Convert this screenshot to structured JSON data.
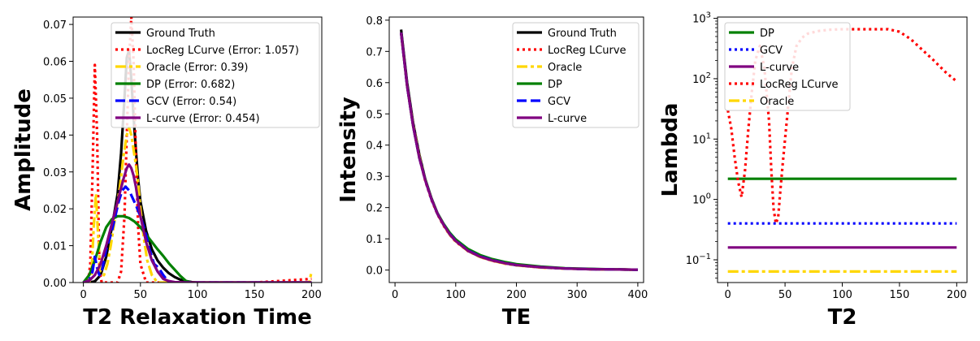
{
  "chart_data": [
    {
      "type": "line",
      "xlabel": "T2 Relaxation Time",
      "ylabel": "Amplitude",
      "xlim": [
        -9,
        209
      ],
      "ylim": [
        0,
        0.072
      ],
      "xscale": "linear",
      "yscale": "linear",
      "xticks": [
        0,
        50,
        100,
        150,
        200
      ],
      "yticks": [
        0.0,
        0.01,
        0.02,
        0.03,
        0.04,
        0.05,
        0.06,
        0.07
      ],
      "xtick_labels": [
        "0",
        "50",
        "100",
        "150",
        "200"
      ],
      "ytick_labels": [
        "0.00",
        "0.01",
        "0.02",
        "0.03",
        "0.04",
        "0.05",
        "0.06",
        "0.07"
      ],
      "legend_position": "top-right",
      "series": [
        {
          "name": "Ground Truth",
          "color": "#000000",
          "style": "solid",
          "x": [
            0,
            5,
            10,
            15,
            20,
            25,
            30,
            33,
            36,
            38,
            40,
            42,
            44,
            46,
            48,
            50,
            55,
            60,
            65,
            70,
            75,
            80,
            85,
            90,
            95,
            100,
            150,
            200
          ],
          "y": [
            0,
            0,
            0.0003,
            0.002,
            0.007,
            0.015,
            0.024,
            0.035,
            0.05,
            0.061,
            0.063,
            0.055,
            0.045,
            0.036,
            0.028,
            0.022,
            0.014,
            0.009,
            0.006,
            0.004,
            0.0025,
            0.0015,
            0.0008,
            0.0004,
            0.0001,
            0,
            0,
            0
          ]
        },
        {
          "name": "LocReg LCurve (Error: 1.057)",
          "color": "#ff0000",
          "style": "dotted",
          "x": [
            0,
            4,
            6,
            8,
            10,
            12,
            14,
            16,
            18,
            20,
            22,
            25,
            28,
            30,
            33,
            36,
            38,
            40,
            42,
            44,
            46,
            48,
            50,
            55,
            60,
            100,
            150,
            200
          ],
          "y": [
            0,
            0,
            0.005,
            0.03,
            0.059,
            0.04,
            0.004,
            0,
            0,
            0,
            0,
            0,
            0,
            0,
            0.003,
            0.018,
            0.04,
            0.06,
            0.072,
            0.06,
            0.035,
            0.015,
            0.005,
            0,
            0,
            0,
            0,
            0.001
          ]
        },
        {
          "name": "Oracle (Error: 0.39)",
          "color": "#ffd700",
          "style": "dashdot",
          "x": [
            0,
            5,
            7,
            9,
            11,
            13,
            15,
            18,
            21,
            24,
            28,
            32,
            35,
            38,
            40,
            42,
            44,
            46,
            48,
            50,
            53,
            56,
            60,
            65,
            70,
            100,
            150,
            198,
            200
          ],
          "y": [
            0,
            0,
            0.002,
            0.015,
            0.024,
            0.012,
            0.003,
            0.002,
            0.005,
            0.01,
            0.018,
            0.026,
            0.034,
            0.04,
            0.042,
            0.04,
            0.036,
            0.032,
            0.027,
            0.02,
            0.012,
            0.006,
            0.002,
            0,
            0,
            0,
            0,
            0,
            0.003
          ]
        },
        {
          "name": "DP (Error: 0.682)",
          "color": "#008000",
          "style": "solid",
          "x": [
            0,
            5,
            10,
            15,
            20,
            25,
            30,
            35,
            40,
            45,
            50,
            55,
            60,
            65,
            70,
            75,
            80,
            85,
            90,
            95,
            100,
            150,
            200
          ],
          "y": [
            0,
            0.002,
            0.006,
            0.011,
            0.015,
            0.0172,
            0.018,
            0.018,
            0.0175,
            0.0165,
            0.015,
            0.013,
            0.011,
            0.009,
            0.0072,
            0.0052,
            0.0035,
            0.0018,
            0.0004,
            0,
            0,
            0,
            0
          ]
        },
        {
          "name": "GCV (Error: 0.54)",
          "color": "#0000ff",
          "style": "dashed",
          "x": [
            0,
            5,
            8,
            10,
            12,
            14,
            16,
            18,
            20,
            22,
            25,
            28,
            31,
            34,
            37,
            40,
            43,
            46,
            50,
            54,
            58,
            62,
            66,
            70,
            75,
            100,
            150,
            200
          ],
          "y": [
            0,
            0.0005,
            0.003,
            0.007,
            0.004,
            0.002,
            0.003,
            0.006,
            0.009,
            0.011,
            0.014,
            0.018,
            0.022,
            0.025,
            0.026,
            0.025,
            0.023,
            0.021,
            0.018,
            0.014,
            0.009,
            0.005,
            0.004,
            0.002,
            0,
            0,
            0,
            0
          ]
        },
        {
          "name": "L-curve (Error: 0.454)",
          "color": "#800080",
          "style": "solid",
          "x": [
            0,
            5,
            10,
            15,
            20,
            25,
            30,
            35,
            38,
            40,
            42,
            44,
            46,
            48,
            50,
            55,
            60,
            65,
            70,
            75,
            80,
            90,
            100,
            150,
            200
          ],
          "y": [
            0,
            0.0005,
            0.002,
            0.005,
            0.01,
            0.016,
            0.022,
            0.028,
            0.031,
            0.032,
            0.031,
            0.029,
            0.026,
            0.022,
            0.018,
            0.011,
            0.006,
            0.003,
            0.001,
            0.0004,
            0.0001,
            0,
            0,
            0,
            0
          ]
        }
      ]
    },
    {
      "type": "line",
      "xlabel": "TE",
      "ylabel": "Intensity",
      "xlim": [
        -9.5,
        409.5
      ],
      "ylim": [
        -0.04,
        0.81
      ],
      "xscale": "linear",
      "yscale": "linear",
      "xticks": [
        0,
        100,
        200,
        300,
        400
      ],
      "yticks": [
        0.0,
        0.1,
        0.2,
        0.3,
        0.4,
        0.5,
        0.6,
        0.7,
        0.8
      ],
      "xtick_labels": [
        "0",
        "100",
        "200",
        "300",
        "400"
      ],
      "ytick_labels": [
        "0.0",
        "0.1",
        "0.2",
        "0.3",
        "0.4",
        "0.5",
        "0.6",
        "0.7",
        "0.8"
      ],
      "legend_position": "top-right",
      "series": [
        {
          "name": "Ground Truth",
          "color": "#000000",
          "style": "solid",
          "x": [
            10,
            20,
            30,
            40,
            50,
            60,
            70,
            80,
            90,
            100,
            120,
            140,
            160,
            180,
            200,
            240,
            280,
            320,
            360,
            400
          ],
          "y": [
            0.77,
            0.6,
            0.47,
            0.37,
            0.29,
            0.23,
            0.18,
            0.145,
            0.115,
            0.093,
            0.062,
            0.043,
            0.031,
            0.022,
            0.016,
            0.009,
            0.005,
            0.003,
            0.002,
            0.001
          ]
        },
        {
          "name": "LocReg LCurve",
          "color": "#ff0000",
          "style": "dotted",
          "x": [
            10,
            20,
            30,
            40,
            50,
            60,
            70,
            80,
            90,
            100,
            120,
            140,
            160,
            180,
            200,
            240,
            280,
            320,
            360,
            400
          ],
          "y": [
            0.76,
            0.59,
            0.46,
            0.36,
            0.285,
            0.225,
            0.178,
            0.142,
            0.113,
            0.091,
            0.061,
            0.042,
            0.03,
            0.021,
            0.015,
            0.008,
            0.005,
            0.003,
            0.002,
            0.001
          ]
        },
        {
          "name": "Oracle",
          "color": "#ffd700",
          "style": "dashdot",
          "x": [
            10,
            20,
            30,
            40,
            50,
            60,
            70,
            80,
            90,
            100,
            120,
            140,
            160,
            180,
            200,
            240,
            280,
            320,
            360,
            400
          ],
          "y": [
            0.76,
            0.59,
            0.465,
            0.365,
            0.288,
            0.228,
            0.18,
            0.144,
            0.114,
            0.092,
            0.061,
            0.042,
            0.03,
            0.021,
            0.015,
            0.008,
            0.005,
            0.003,
            0.002,
            0.001
          ]
        },
        {
          "name": "DP",
          "color": "#008000",
          "style": "solid",
          "x": [
            10,
            20,
            30,
            40,
            50,
            60,
            70,
            80,
            90,
            100,
            120,
            140,
            160,
            180,
            200,
            240,
            280,
            320,
            360,
            400
          ],
          "y": [
            0.76,
            0.59,
            0.46,
            0.36,
            0.29,
            0.23,
            0.182,
            0.148,
            0.12,
            0.098,
            0.068,
            0.048,
            0.035,
            0.026,
            0.019,
            0.011,
            0.006,
            0.004,
            0.002,
            0.001
          ]
        },
        {
          "name": "GCV",
          "color": "#0000ff",
          "style": "dashed",
          "x": [
            10,
            20,
            30,
            40,
            50,
            60,
            70,
            80,
            90,
            100,
            120,
            140,
            160,
            180,
            200,
            240,
            280,
            320,
            360,
            400
          ],
          "y": [
            0.76,
            0.59,
            0.46,
            0.36,
            0.287,
            0.227,
            0.18,
            0.145,
            0.116,
            0.094,
            0.063,
            0.044,
            0.032,
            0.023,
            0.016,
            0.009,
            0.005,
            0.003,
            0.002,
            0.001
          ]
        },
        {
          "name": "L-curve",
          "color": "#800080",
          "style": "solid",
          "x": [
            10,
            20,
            30,
            40,
            50,
            60,
            70,
            80,
            90,
            100,
            120,
            140,
            160,
            180,
            200,
            240,
            280,
            320,
            360,
            400
          ],
          "y": [
            0.76,
            0.59,
            0.46,
            0.36,
            0.287,
            0.228,
            0.18,
            0.145,
            0.115,
            0.093,
            0.062,
            0.043,
            0.031,
            0.022,
            0.016,
            0.009,
            0.005,
            0.003,
            0.002,
            0.001
          ]
        }
      ]
    },
    {
      "type": "line",
      "xlabel": "T2",
      "ylabel": "Lambda",
      "xlim": [
        -9,
        209
      ],
      "ylim": [
        0.042,
        1050
      ],
      "xscale": "linear",
      "yscale": "log",
      "xticks": [
        0,
        50,
        100,
        150,
        200
      ],
      "yticks": [
        0.1,
        1,
        10,
        100,
        1000
      ],
      "xtick_labels": [
        "0",
        "50",
        "100",
        "150",
        "200"
      ],
      "ytick_labels": [
        "10^-1",
        "10^0",
        "10^1",
        "10^2",
        "10^3"
      ],
      "legend_position": "top-left",
      "series": [
        {
          "name": "DP",
          "color": "#008000",
          "style": "solid",
          "x": [
            0,
            200
          ],
          "y": [
            2.2,
            2.2
          ]
        },
        {
          "name": "GCV",
          "color": "#0000ff",
          "style": "dotted",
          "x": [
            0,
            200
          ],
          "y": [
            0.4,
            0.4
          ]
        },
        {
          "name": "L-curve",
          "color": "#800080",
          "style": "solid",
          "x": [
            0,
            200
          ],
          "y": [
            0.16,
            0.16
          ]
        },
        {
          "name": "LocReg LCurve",
          "color": "#ff0000",
          "style": "dotted",
          "x": [
            0,
            3,
            6,
            9,
            12,
            15,
            18,
            21,
            24,
            28,
            32,
            36,
            38,
            40,
            42,
            44,
            46,
            48,
            52,
            56,
            60,
            65,
            70,
            80,
            90,
            100,
            110,
            120,
            130,
            140,
            150,
            160,
            170,
            180,
            190,
            200
          ],
          "y": [
            30,
            15,
            5,
            2,
            1.1,
            3,
            15,
            60,
            200,
            350,
            150,
            20,
            3,
            0.7,
            0.4,
            0.5,
            1.5,
            4,
            25,
            150,
            350,
            480,
            560,
            620,
            650,
            660,
            660,
            660,
            660,
            660,
            600,
            450,
            300,
            200,
            130,
            90
          ]
        },
        {
          "name": "Oracle",
          "color": "#ffd700",
          "style": "dashdot",
          "x": [
            0,
            200
          ],
          "y": [
            0.064,
            0.064
          ]
        }
      ]
    }
  ]
}
